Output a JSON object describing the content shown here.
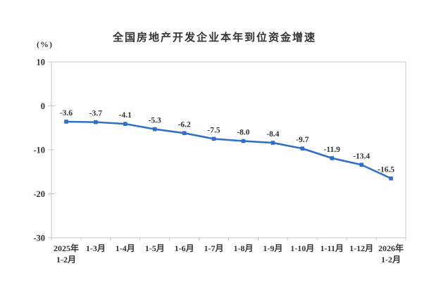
{
  "chart_data": {
    "type": "line",
    "title": "全国房地产开发企业本年到位资金增速",
    "unit_label": "(%)",
    "categories": [
      [
        "2025年",
        "1-2月"
      ],
      [
        "1-3月"
      ],
      [
        "1-4月"
      ],
      [
        "1-5月"
      ],
      [
        "1-6月"
      ],
      [
        "1-7月"
      ],
      [
        "1-8月"
      ],
      [
        "1-9月"
      ],
      [
        "1-10月"
      ],
      [
        "1-11月"
      ],
      [
        "1-12月"
      ],
      [
        "2026年",
        "1-2月"
      ]
    ],
    "values": [
      -3.6,
      -3.7,
      -4.1,
      -5.3,
      -6.2,
      -7.5,
      -8.0,
      -8.4,
      -9.7,
      -11.9,
      -13.4,
      -16.5
    ],
    "data_labels": [
      "-3.6",
      "-3.7",
      "-4.1",
      "-5.3",
      "-6.2",
      "-7.5",
      "-8.0",
      "-8.4",
      "-9.7",
      "-11.9",
      "-13.4",
      "-16.5"
    ],
    "ylim": [
      -30,
      10
    ],
    "yticks": [
      10,
      0,
      -10,
      -20,
      -30
    ],
    "ytick_labels": [
      "10",
      "0",
      "-10",
      "-20",
      "-30"
    ],
    "grid": false,
    "legend": "none",
    "marker": "square",
    "colors": {
      "line": "#2E6FC8",
      "marker": "#2E6FC8",
      "axis": "#C6C6C6",
      "text": "#333333"
    }
  }
}
